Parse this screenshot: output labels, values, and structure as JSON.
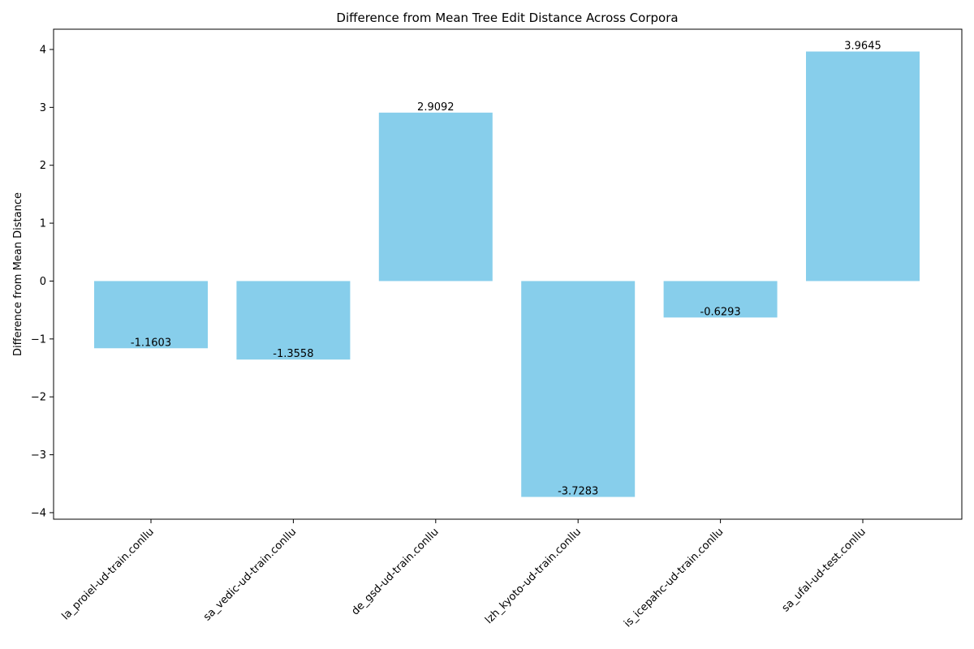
{
  "chart_data": {
    "type": "bar",
    "title": "Difference from Mean Tree Edit Distance Across Corpora",
    "xlabel": "",
    "ylabel": "Difference from Mean Distance",
    "categories": [
      "la_proiel-ud-train.conllu",
      "sa_vedic-ud-train.conllu",
      "de_gsd-ud-train.conllu",
      "lzh_kyoto-ud-train.conllu",
      "is_icepahc-ud-train.conllu",
      "sa_ufal-ud-test.conllu"
    ],
    "values": [
      -1.1603,
      -1.3558,
      2.9092,
      -3.7283,
      -0.6293,
      3.9645
    ],
    "value_labels": [
      "-1.1603",
      "-1.3558",
      "2.9092",
      "-3.7283",
      "-0.6293",
      "3.9645"
    ],
    "ylim": [
      -4.113,
      4.35
    ],
    "yticks": [
      -4,
      -3,
      -2,
      -1,
      0,
      1,
      2,
      3,
      4
    ],
    "ytick_labels": [
      "−4",
      "−3",
      "−2",
      "−1",
      "0",
      "1",
      "2",
      "3",
      "4"
    ],
    "grid": false,
    "legend": "none",
    "bar_color": "#87ceeb"
  }
}
